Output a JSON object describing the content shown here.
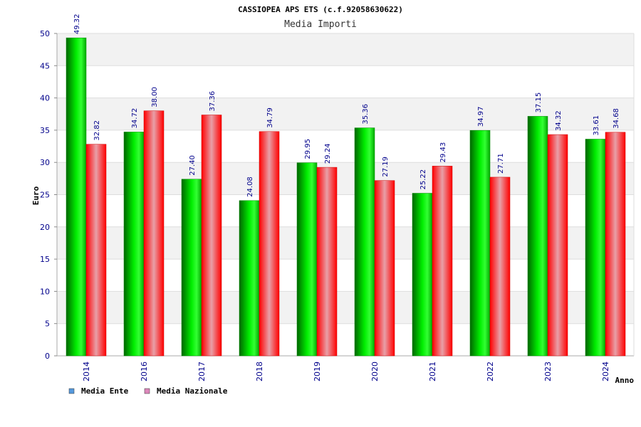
{
  "chart_data": {
    "type": "bar",
    "title": "CASSIOPEA APS ETS (c.f.92058630622)",
    "subtitle": "Media Importi",
    "ylabel": "Euro",
    "xlabel": "Anno",
    "ylim": [
      0,
      50
    ],
    "yticks": [
      0,
      5,
      10,
      15,
      20,
      25,
      30,
      35,
      40,
      45,
      50
    ],
    "grid": true,
    "legend_position": "bottom-left",
    "categories": [
      "2014",
      "2016",
      "2017",
      "2018",
      "2019",
      "2020",
      "2021",
      "2022",
      "2023",
      "2024"
    ],
    "series": [
      {
        "name": "Media Ente",
        "legend_color": "#5599dd",
        "bar_color": "#00cc00",
        "values": [
          49.32,
          34.72,
          27.4,
          24.08,
          29.95,
          35.36,
          25.22,
          34.97,
          37.15,
          33.61
        ],
        "labels": [
          "49.32",
          "34.72",
          "27.40",
          "24.08",
          "29.95",
          "35.36",
          "25.22",
          "34.97",
          "37.15",
          "33.61"
        ]
      },
      {
        "name": "Media Nazionale",
        "legend_color": "#dd88bb",
        "bar_color": "#ee1122",
        "values": [
          32.82,
          38.0,
          37.36,
          34.79,
          29.24,
          27.19,
          29.43,
          27.71,
          34.32,
          34.68
        ],
        "labels": [
          "32.82",
          "38.00",
          "37.36",
          "34.79",
          "29.24",
          "27.19",
          "29.43",
          "27.71",
          "34.32",
          "34.68"
        ]
      }
    ]
  }
}
